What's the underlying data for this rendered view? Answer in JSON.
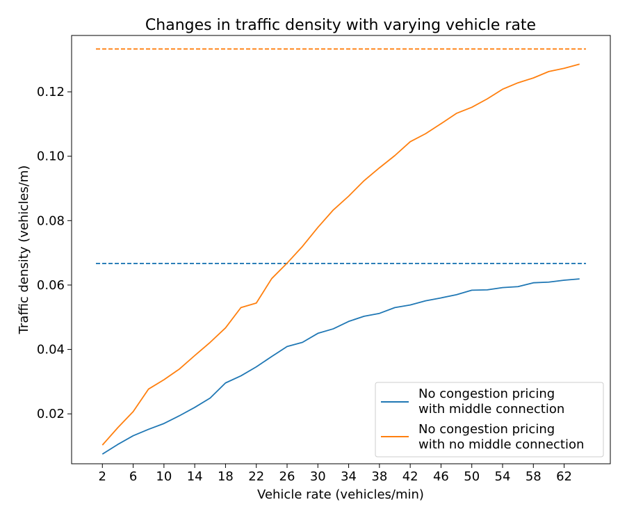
{
  "chart_data": {
    "type": "line",
    "title": "Changes in traffic density with varying vehicle rate",
    "xlabel": "Vehicle rate (vehicles/min)",
    "ylabel": "Traffic density (vehicles/m)",
    "xlim": [
      -2,
      68
    ],
    "ylim": [
      0.0045,
      0.1375
    ],
    "xticks": [
      2,
      6,
      10,
      14,
      18,
      22,
      26,
      30,
      34,
      38,
      42,
      46,
      50,
      54,
      58,
      62
    ],
    "yticks": [
      0.02,
      0.04,
      0.06,
      0.08,
      0.1,
      0.12
    ],
    "ytick_labels": [
      "0.02",
      "0.04",
      "0.06",
      "0.08",
      "0.10",
      "0.12"
    ],
    "legend_position": "lower-right",
    "grid": false,
    "x": [
      2,
      4,
      6,
      8,
      10,
      12,
      14,
      16,
      18,
      20,
      22,
      24,
      26,
      28,
      30,
      32,
      34,
      36,
      38,
      40,
      42,
      44,
      46,
      48,
      50,
      52,
      54,
      56,
      58,
      60,
      62,
      64
    ],
    "series": [
      {
        "name": "No congestion pricing with middle connection",
        "legend_lines": [
          "No congestion pricing",
          "with middle connection"
        ],
        "color": "#1f77b4",
        "values": [
          0.0075,
          0.0105,
          0.0132,
          0.0152,
          0.017,
          0.0194,
          0.022,
          0.0249,
          0.0296,
          0.0318,
          0.0346,
          0.0378,
          0.0409,
          0.0422,
          0.045,
          0.0464,
          0.0487,
          0.0503,
          0.0512,
          0.053,
          0.0538,
          0.0551,
          0.056,
          0.057,
          0.0584,
          0.0585,
          0.0592,
          0.0595,
          0.0607,
          0.0609,
          0.0615,
          0.0619
        ],
        "reference_line": 0.0667
      },
      {
        "name": "No congestion pricing with no middle connection",
        "legend_lines": [
          "No congestion pricing",
          "with no middle connection"
        ],
        "color": "#ff7f0e",
        "values": [
          0.0103,
          0.0157,
          0.0207,
          0.0277,
          0.0306,
          0.0339,
          0.0381,
          0.0422,
          0.0467,
          0.053,
          0.0544,
          0.062,
          0.0668,
          0.072,
          0.0779,
          0.0833,
          0.0876,
          0.0924,
          0.0964,
          0.1002,
          0.1045,
          0.107,
          0.1101,
          0.1133,
          0.1152,
          0.1178,
          0.1208,
          0.1228,
          0.1243,
          0.1263,
          0.1273,
          0.1286
        ],
        "reference_line": 0.1333
      }
    ]
  }
}
